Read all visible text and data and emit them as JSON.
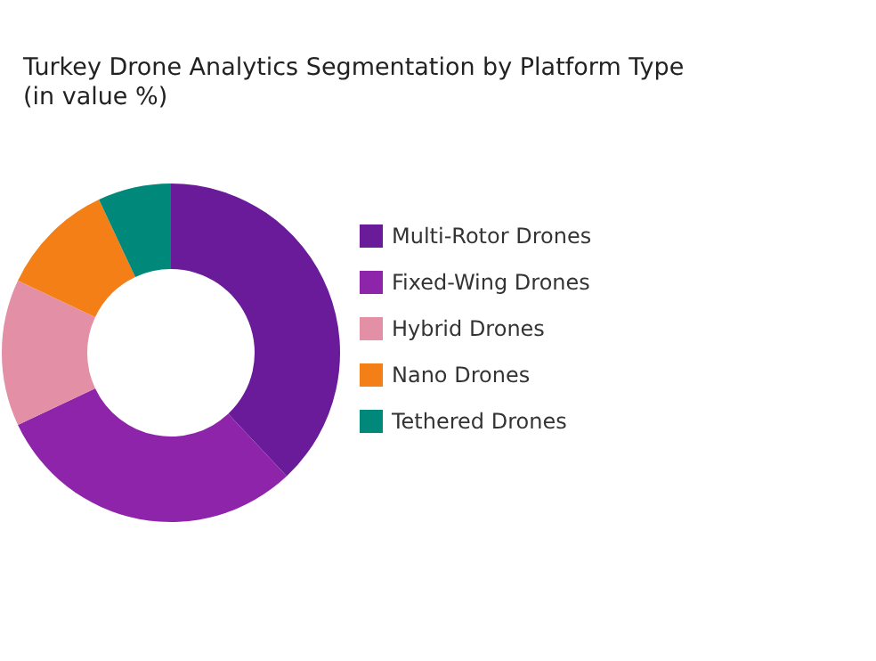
{
  "chart_data": {
    "type": "donut",
    "title": "Turkey Drone Analytics Segmentation by Platform Type",
    "subtitle": "(in value %)",
    "categories": [
      "Multi-Rotor Drones",
      "Fixed-Wing Drones",
      "Hybrid Drones",
      "Nano Drones",
      "Tethered Drones"
    ],
    "values": [
      38,
      30,
      14,
      11,
      7
    ],
    "colors": [
      "#6a1b9a",
      "#8e24aa",
      "#e38fa5",
      "#f57f17",
      "#00897b"
    ],
    "legend": "right"
  }
}
